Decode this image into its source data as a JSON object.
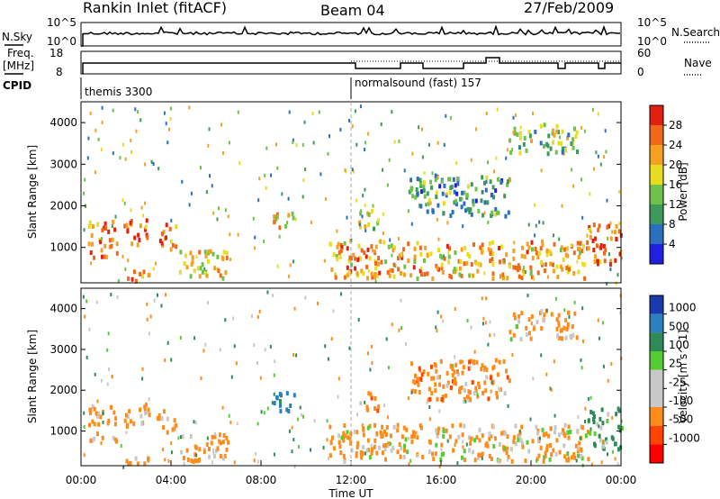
{
  "header": {
    "title": "Rankin Inlet (fitACF)",
    "beam": "Beam 04",
    "date": "27/Feb/2009"
  },
  "nsky_panel": {
    "left_label": "N.Sky",
    "left_top_tick": "10^5",
    "left_bottom_tick": "10^0",
    "right_top_tick": "10^5",
    "right_bottom_tick": "10^0",
    "right_label": "N.Search"
  },
  "freq_panel": {
    "left_label_line1": "Freq.",
    "left_label_line2": "[MHz]",
    "left_top_tick": "18",
    "left_bottom_tick": "8",
    "right_top_tick": "60",
    "right_bottom_tick": "0",
    "right_label": "Nave"
  },
  "cpid_panel": {
    "label": "CPID",
    "programs": [
      {
        "name": "themis 3300",
        "start_hour": 0
      },
      {
        "name": "normalsound (fast) 157",
        "start_hour": 12
      }
    ]
  },
  "colors": {
    "power": [
      "#2020e0",
      "#2a6fc0",
      "#3c9a5a",
      "#6ec24a",
      "#e8dc20",
      "#f5a020",
      "#f06818",
      "#e02010"
    ],
    "velocity": [
      "#ff0000",
      "#ff4400",
      "#ff8c1a",
      "#c8c8c8",
      "#c8c8c8",
      "#55cc33",
      "#2e8b57",
      "#2a80c0",
      "#1a3ab0"
    ]
  },
  "chart_data": [
    {
      "type": "heatmap",
      "title": "",
      "xlabel": "",
      "ylabel": "Slant Range [km]",
      "xlim": [
        0,
        24
      ],
      "ylim": [
        150,
        4500
      ],
      "yticks": [
        "1000",
        "2000",
        "3000",
        "4000"
      ],
      "colorbar_label": "Power [dB]",
      "colorbar_ticks": [
        "4",
        "8",
        "12",
        "16",
        "20",
        "24",
        "28"
      ],
      "clim": [
        0,
        32
      ],
      "blobs": [
        {
          "h0": 0.3,
          "h1": 1.6,
          "r0": 800,
          "r1": 1700,
          "val": 24
        },
        {
          "h0": 1.8,
          "h1": 3.0,
          "r0": 1100,
          "r1": 1700,
          "val": 26
        },
        {
          "h0": 3.3,
          "h1": 4.2,
          "r0": 1000,
          "r1": 1600,
          "val": 25
        },
        {
          "h0": 1.8,
          "h1": 3.0,
          "r0": 200,
          "r1": 500,
          "val": 22
        },
        {
          "h0": 4.3,
          "h1": 6.5,
          "r0": 300,
          "r1": 1000,
          "val": 20
        },
        {
          "h0": 8.5,
          "h1": 9.5,
          "r0": 1500,
          "r1": 2000,
          "val": 20
        },
        {
          "h0": 12.3,
          "h1": 13.2,
          "r0": 1500,
          "r1": 2000,
          "val": 18
        },
        {
          "h0": 11.0,
          "h1": 22.5,
          "r0": 300,
          "r1": 1200,
          "val": 22
        },
        {
          "h0": 22.5,
          "h1": 24.0,
          "r0": 600,
          "r1": 1600,
          "val": 26
        },
        {
          "h0": 14.5,
          "h1": 19.0,
          "r0": 1800,
          "r1": 2800,
          "val": 10
        },
        {
          "h0": 19.0,
          "h1": 22.0,
          "r0": 3300,
          "r1": 4000,
          "val": 14
        }
      ]
    },
    {
      "type": "heatmap",
      "title": "",
      "xlabel": "Time UT",
      "ylabel": "Slant Range [km]",
      "xlim": [
        0,
        24
      ],
      "ylim": [
        150,
        4500
      ],
      "xticks": [
        "00:00",
        "04:00",
        "08:00",
        "12:00",
        "16:00",
        "20:00",
        "00:00"
      ],
      "yticks": [
        "1000",
        "2000",
        "3000",
        "4000"
      ],
      "colorbar_label": "Velocity [m s^-1]",
      "colorbar_ticks": [
        "1000",
        "500",
        "100",
        "25",
        "-25",
        "-100",
        "-500",
        "-1000"
      ],
      "clim": [
        -1200,
        1200
      ],
      "blobs": [
        {
          "h0": 0.3,
          "h1": 1.6,
          "r0": 800,
          "r1": 1700,
          "val": -250
        },
        {
          "h0": 1.8,
          "h1": 3.0,
          "r0": 1100,
          "r1": 1700,
          "val": -250
        },
        {
          "h0": 3.3,
          "h1": 4.2,
          "r0": 1000,
          "r1": 1600,
          "val": -250
        },
        {
          "h0": 1.8,
          "h1": 3.0,
          "r0": 200,
          "r1": 500,
          "val": -200
        },
        {
          "h0": 4.3,
          "h1": 6.5,
          "r0": 300,
          "r1": 1000,
          "val": -250
        },
        {
          "h0": 8.5,
          "h1": 9.5,
          "r0": 1500,
          "r1": 2000,
          "val": 700
        },
        {
          "h0": 12.3,
          "h1": 13.2,
          "r0": 1500,
          "r1": 2000,
          "val": -300
        },
        {
          "h0": 11.0,
          "h1": 22.5,
          "r0": 300,
          "r1": 1200,
          "val": -150
        },
        {
          "h0": 22.5,
          "h1": 24.0,
          "r0": 600,
          "r1": 1600,
          "val": 150
        },
        {
          "h0": 14.5,
          "h1": 19.0,
          "r0": 1800,
          "r1": 2800,
          "val": -300
        },
        {
          "h0": 19.0,
          "h1": 22.0,
          "r0": 3300,
          "r1": 4000,
          "val": -200
        }
      ]
    }
  ]
}
